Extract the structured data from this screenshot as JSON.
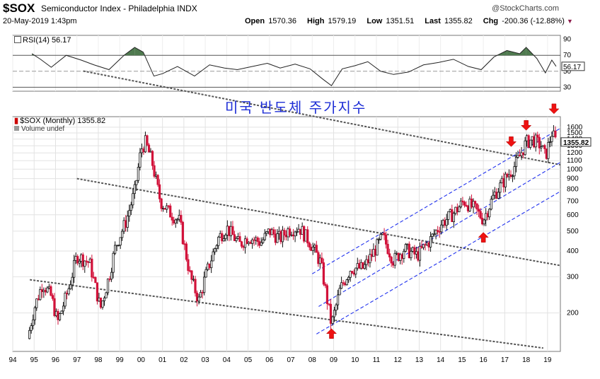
{
  "header": {
    "symbol": "$SOX",
    "name": "Semiconductor Index - Philadelphia INDX",
    "datetime": "20-May-2019 1:43pm",
    "brand": "@StockCharts.com"
  },
  "ohlc": {
    "open_label": "Open",
    "open": "1570.36",
    "high_label": "High",
    "high": "1579.19",
    "low_label": "Low",
    "low": "1351.51",
    "last_label": "Last",
    "last": "1355.82",
    "chg_label": "Chg",
    "chg": "-200.36 (-12.88%)",
    "down_marker": "▼"
  },
  "annotation": "미국 반도체 주가지수",
  "chart_data": [
    {
      "type": "line",
      "title": "RSI(14) 56.17",
      "indicator": "RSI",
      "period": 14,
      "current": 56.17,
      "current_label": "56.17",
      "ylim": [
        25,
        95
      ],
      "yticks": [
        90,
        70,
        50,
        30
      ],
      "reference_lines": [
        70,
        30
      ],
      "x": [
        1994.9,
        1995.3,
        1995.8,
        1996.5,
        1997.2,
        1997.8,
        1998.5,
        1999.2,
        1999.7,
        2000.1,
        2000.6,
        2001.0,
        2001.7,
        2002.5,
        2003.2,
        2003.9,
        2004.5,
        2005.2,
        2005.9,
        2006.5,
        2007.2,
        2007.9,
        2008.5,
        2008.9,
        2009.4,
        2010.0,
        2010.6,
        2011.2,
        2011.8,
        2012.5,
        2013.2,
        2013.9,
        2014.6,
        2015.3,
        2015.9,
        2016.5,
        2017.1,
        2017.7,
        2018.0,
        2018.5,
        2018.9,
        2019.2,
        2019.4
      ],
      "values": [
        72,
        65,
        55,
        70,
        64,
        58,
        52,
        70,
        80,
        74,
        44,
        47,
        56,
        44,
        58,
        54,
        52,
        56,
        60,
        54,
        59,
        53,
        40,
        32,
        53,
        57,
        62,
        50,
        46,
        49,
        58,
        61,
        65,
        56,
        52,
        68,
        76,
        72,
        80,
        66,
        48,
        64,
        56.17
      ]
    },
    {
      "type": "line",
      "title": "$SOX (Monthly) 1355.82",
      "subtitle": "Volume undef",
      "scale": "log",
      "last_label": "1355.82",
      "ylim": [
        130,
        1800
      ],
      "yticks": [
        1600,
        1500,
        1400,
        1300,
        1200,
        1100,
        1000,
        900,
        800,
        700,
        600,
        500,
        400,
        300,
        200
      ],
      "xlim": [
        1994.0,
        2019.6
      ],
      "xticks": [
        "94",
        "95",
        "96",
        "97",
        "98",
        "99",
        "00",
        "01",
        "02",
        "03",
        "04",
        "05",
        "06",
        "07",
        "08",
        "09",
        "10",
        "11",
        "12",
        "13",
        "14",
        "15",
        "16",
        "17",
        "18",
        "19"
      ],
      "series": [
        {
          "name": "$SOX monthly close",
          "x": [
            1994.7,
            1995.0,
            1995.4,
            1995.8,
            1996.1,
            1996.6,
            1997.0,
            1997.6,
            1998.1,
            1998.5,
            1998.8,
            1999.3,
            1999.7,
            2000.0,
            2000.2,
            2000.5,
            2000.9,
            2001.3,
            2001.8,
            2002.3,
            2002.7,
            2003.0,
            2003.6,
            2004.0,
            2004.6,
            2005.0,
            2005.6,
            2006.0,
            2006.5,
            2006.9,
            2007.4,
            2007.9,
            2008.4,
            2008.9,
            2009.3,
            2009.8,
            2010.4,
            2010.9,
            2011.3,
            2011.8,
            2012.3,
            2012.9,
            2013.5,
            2014.0,
            2014.6,
            2015.1,
            2015.6,
            2016.0,
            2016.5,
            2017.0,
            2017.5,
            2018.0,
            2018.3,
            2018.7,
            2018.9,
            2019.2,
            2019.4
          ],
          "values": [
            150,
            210,
            280,
            240,
            180,
            260,
            380,
            350,
            210,
            300,
            420,
            560,
            780,
            1250,
            1350,
            1100,
            700,
            620,
            560,
            300,
            230,
            300,
            460,
            520,
            430,
            470,
            440,
            500,
            460,
            510,
            520,
            440,
            350,
            175,
            260,
            330,
            330,
            400,
            470,
            360,
            410,
            380,
            450,
            540,
            610,
            700,
            640,
            570,
            750,
            890,
            1050,
            1350,
            1400,
            1300,
            1150,
            1500,
            1355.82
          ]
        }
      ],
      "guide_lines": [
        {
          "style": "black-dotted",
          "from": [
            1997.3,
            3000
          ],
          "to": [
            2019.6,
            1050
          ]
        },
        {
          "style": "black-dotted",
          "from": [
            1997.0,
            900
          ],
          "to": [
            2019.6,
            340
          ]
        },
        {
          "style": "black-dotted",
          "from": [
            1994.8,
            290
          ],
          "to": [
            2018.8,
            135
          ]
        },
        {
          "style": "blue-dashed",
          "from": [
            2008.0,
            310
          ],
          "to": [
            2019.6,
            1580
          ]
        },
        {
          "style": "blue-dashed",
          "from": [
            2008.3,
            215
          ],
          "to": [
            2019.6,
            1080
          ]
        },
        {
          "style": "blue-dashed",
          "from": [
            2008.2,
            158
          ],
          "to": [
            2019.6,
            780
          ]
        }
      ],
      "arrows": [
        {
          "direction": "up",
          "x": 2008.9,
          "y": 160
        },
        {
          "direction": "up",
          "x": 2016.0,
          "y": 470
        },
        {
          "direction": "down",
          "x": 2017.3,
          "y": 1350
        },
        {
          "direction": "down",
          "x": 2018.0,
          "y": 1620
        },
        {
          "direction": "down",
          "x": 2019.3,
          "y": 1950
        }
      ]
    }
  ]
}
